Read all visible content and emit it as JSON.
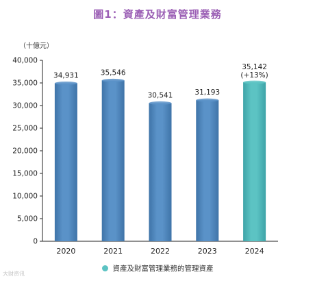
{
  "title": "圖1：資產及財富管理業務",
  "watermark": "大财资讯",
  "colors": {
    "title": "#9b5fb5",
    "bar_main": "#5a92c8",
    "bar_main_dark": "#3f74a8",
    "bar_highlight": "#5cc3c3",
    "bar_highlight_dark": "#3ea4a8",
    "axis": "#222222"
  },
  "chart_data": {
    "type": "bar",
    "title": "圖1：資產及財富管理業務",
    "ylabel": "（十億元）",
    "xlabel": "",
    "ylim": [
      0,
      40000
    ],
    "yticks": [
      0,
      5000,
      10000,
      15000,
      20000,
      25000,
      30000,
      35000,
      40000
    ],
    "ytick_labels": [
      "0",
      "5,000",
      "10,000",
      "15,000",
      "20,000",
      "25,000",
      "30,000",
      "35,000",
      "40,000"
    ],
    "categories": [
      "2020",
      "2021",
      "2022",
      "2023",
      "2024"
    ],
    "series": [
      {
        "name": "資產及財富管理業務的管理資產",
        "values": [
          34931,
          35546,
          30541,
          31193,
          35142
        ],
        "value_labels": [
          "34,931",
          "35,546",
          "30,541",
          "31,193",
          "35,142"
        ],
        "sublabels": [
          "",
          "",
          "",
          "",
          "(+13%)"
        ],
        "highlight_index": 4
      }
    ],
    "grid": false,
    "legend_position": "bottom"
  }
}
